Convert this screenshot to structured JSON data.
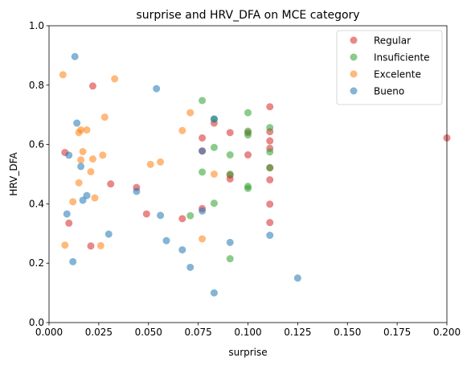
{
  "chart_data": {
    "type": "scatter",
    "title": "surprise and HRV_DFA on MCE category",
    "xlabel": "surprise",
    "ylabel": "HRV_DFA",
    "xlim": [
      0,
      0.2
    ],
    "ylim": [
      0,
      1.0
    ],
    "xticks": [
      "0.000",
      "0.025",
      "0.050",
      "0.075",
      "0.100",
      "0.125",
      "0.150",
      "0.175",
      "0.200"
    ],
    "yticks": [
      "0.0",
      "0.2",
      "0.4",
      "0.6",
      "0.8",
      "1.0"
    ],
    "grid": false,
    "legend_position": "top-right",
    "series": [
      {
        "name": "Regular",
        "color": "#d62728",
        "points": [
          [
            0.008,
            0.573
          ],
          [
            0.01,
            0.335
          ],
          [
            0.022,
            0.797
          ],
          [
            0.021,
            0.258
          ],
          [
            0.031,
            0.467
          ],
          [
            0.044,
            0.455
          ],
          [
            0.049,
            0.366
          ],
          [
            0.067,
            0.35
          ],
          [
            0.077,
            0.622
          ],
          [
            0.077,
            0.578
          ],
          [
            0.077,
            0.384
          ],
          [
            0.083,
            0.672
          ],
          [
            0.091,
            0.64
          ],
          [
            0.091,
            0.484
          ],
          [
            0.091,
            0.497
          ],
          [
            0.1,
            0.64
          ],
          [
            0.1,
            0.565
          ],
          [
            0.111,
            0.727
          ],
          [
            0.111,
            0.643
          ],
          [
            0.111,
            0.612
          ],
          [
            0.111,
            0.587
          ],
          [
            0.111,
            0.522
          ],
          [
            0.111,
            0.481
          ],
          [
            0.111,
            0.399
          ],
          [
            0.111,
            0.337
          ],
          [
            0.2,
            0.622
          ]
        ]
      },
      {
        "name": "Insuficiente",
        "color": "#2ca02c",
        "points": [
          [
            0.071,
            0.36
          ],
          [
            0.077,
            0.748
          ],
          [
            0.077,
            0.507
          ],
          [
            0.083,
            0.685
          ],
          [
            0.083,
            0.59
          ],
          [
            0.083,
            0.402
          ],
          [
            0.091,
            0.565
          ],
          [
            0.091,
            0.5
          ],
          [
            0.091,
            0.215
          ],
          [
            0.1,
            0.707
          ],
          [
            0.1,
            0.645
          ],
          [
            0.1,
            0.632
          ],
          [
            0.1,
            0.459
          ],
          [
            0.1,
            0.452
          ],
          [
            0.111,
            0.657
          ],
          [
            0.111,
            0.575
          ],
          [
            0.111,
            0.521
          ]
        ]
      },
      {
        "name": "Excelente",
        "color": "#ff7f0e",
        "points": [
          [
            0.007,
            0.835
          ],
          [
            0.008,
            0.261
          ],
          [
            0.012,
            0.407
          ],
          [
            0.015,
            0.64
          ],
          [
            0.015,
            0.471
          ],
          [
            0.016,
            0.649
          ],
          [
            0.016,
            0.548
          ],
          [
            0.017,
            0.576
          ],
          [
            0.019,
            0.649
          ],
          [
            0.021,
            0.508
          ],
          [
            0.022,
            0.551
          ],
          [
            0.023,
            0.42
          ],
          [
            0.026,
            0.259
          ],
          [
            0.027,
            0.564
          ],
          [
            0.028,
            0.692
          ],
          [
            0.033,
            0.821
          ],
          [
            0.051,
            0.533
          ],
          [
            0.056,
            0.541
          ],
          [
            0.067,
            0.647
          ],
          [
            0.071,
            0.707
          ],
          [
            0.077,
            0.282
          ],
          [
            0.083,
            0.5
          ]
        ]
      },
      {
        "name": "Bueno",
        "color": "#1f77b4",
        "points": [
          [
            0.009,
            0.366
          ],
          [
            0.01,
            0.564
          ],
          [
            0.012,
            0.205
          ],
          [
            0.013,
            0.896
          ],
          [
            0.014,
            0.672
          ],
          [
            0.016,
            0.526
          ],
          [
            0.017,
            0.412
          ],
          [
            0.019,
            0.428
          ],
          [
            0.03,
            0.298
          ],
          [
            0.044,
            0.442
          ],
          [
            0.054,
            0.788
          ],
          [
            0.056,
            0.361
          ],
          [
            0.059,
            0.276
          ],
          [
            0.067,
            0.245
          ],
          [
            0.071,
            0.186
          ],
          [
            0.077,
            0.578
          ],
          [
            0.077,
            0.376
          ],
          [
            0.083,
            0.686
          ],
          [
            0.083,
            0.1
          ],
          [
            0.091,
            0.27
          ],
          [
            0.111,
            0.294
          ],
          [
            0.125,
            0.15
          ]
        ]
      }
    ]
  }
}
